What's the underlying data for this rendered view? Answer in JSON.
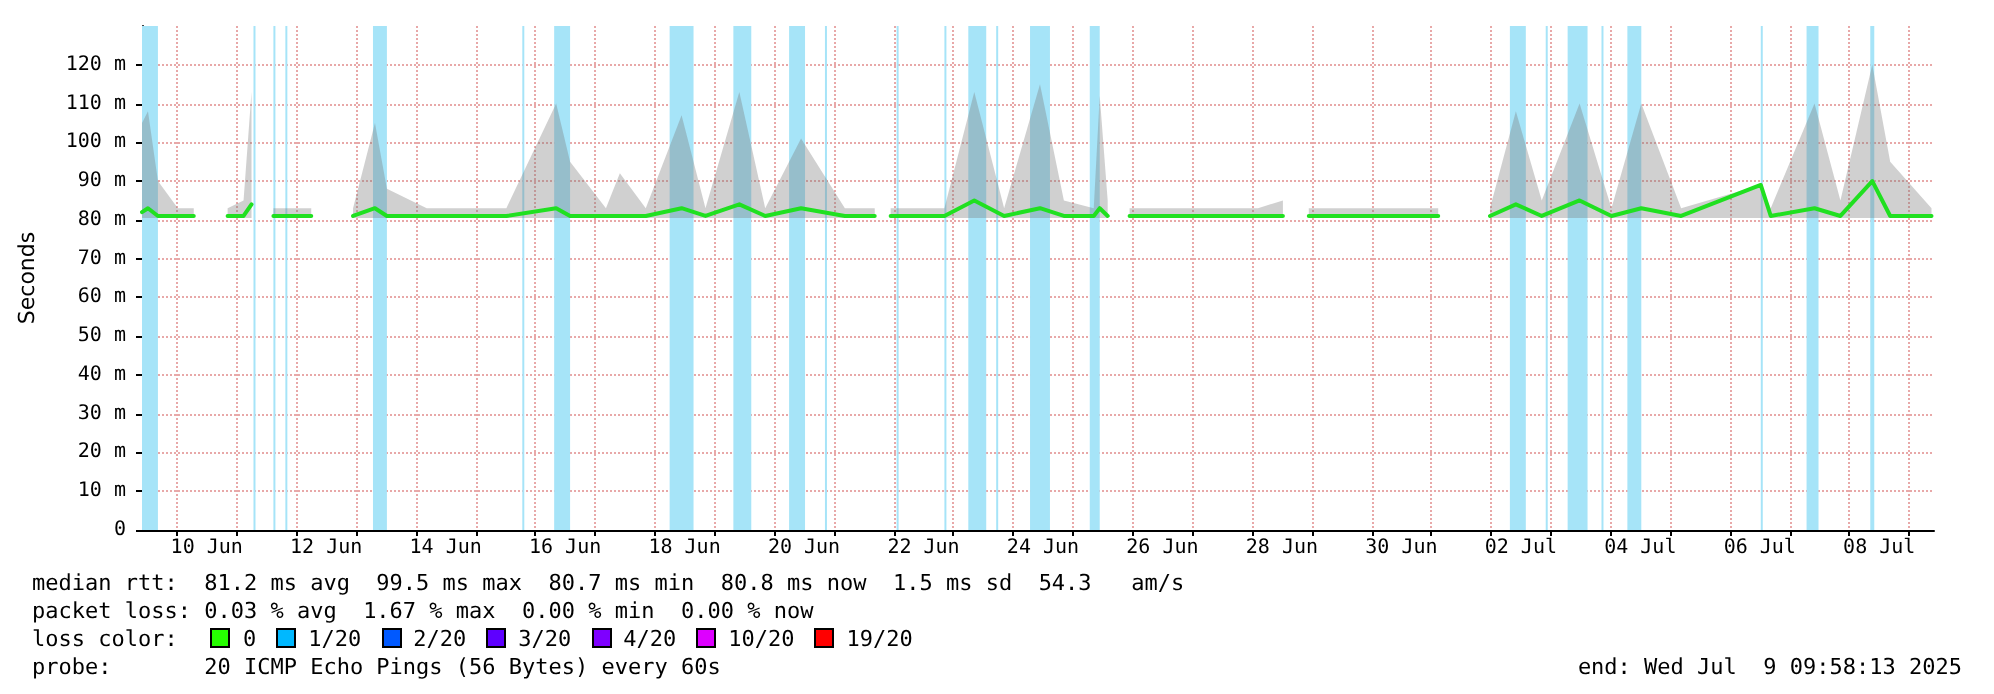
{
  "chart_data": {
    "type": "line",
    "ylabel": "Seconds",
    "annotations": [
      "median rtt:  81.2 ms avg  99.5 ms max  80.7 ms min  80.8 ms now  1.5 ms sd  54.3   am/s",
      "packet loss: 0.03 % avg  1.67 % max  0.00 % min  0.00 % now",
      "loss color:",
      "0",
      "1/20",
      "2/20",
      "3/20",
      "4/20",
      "10/20",
      "19/20",
      "probe:       20 ICMP Echo Pings (56 Bytes) every 60s",
      "end: Wed Jul  9 09:58:13 2025"
    ],
    "xlim": [
      "2025-06-09T10:00",
      "2025-07-09T10:00"
    ],
    "xticks": [
      {
        "value": "2025-06-10T00:00",
        "label": null
      },
      {
        "value": "2025-06-10T12:00",
        "label": "10 Jun"
      },
      {
        "value": "2025-06-11T00:00",
        "label": null
      },
      {
        "value": "2025-06-12T00:00",
        "label": null
      },
      {
        "value": "2025-06-12T12:00",
        "label": "12 Jun"
      },
      {
        "value": "2025-06-13T00:00",
        "label": null
      },
      {
        "value": "2025-06-14T00:00",
        "label": null
      },
      {
        "value": "2025-06-14T12:00",
        "label": "14 Jun"
      },
      {
        "value": "2025-06-15T00:00",
        "label": null
      },
      {
        "value": "2025-06-16T00:00",
        "label": null
      },
      {
        "value": "2025-06-16T12:00",
        "label": "16 Jun"
      },
      {
        "value": "2025-06-17T00:00",
        "label": null
      },
      {
        "value": "2025-06-18T00:00",
        "label": null
      },
      {
        "value": "2025-06-18T12:00",
        "label": "18 Jun"
      },
      {
        "value": "2025-06-19T00:00",
        "label": null
      },
      {
        "value": "2025-06-20T00:00",
        "label": null
      },
      {
        "value": "2025-06-20T12:00",
        "label": "20 Jun"
      },
      {
        "value": "2025-06-21T00:00",
        "label": null
      },
      {
        "value": "2025-06-22T00:00",
        "label": null
      },
      {
        "value": "2025-06-22T12:00",
        "label": "22 Jun"
      },
      {
        "value": "2025-06-23T00:00",
        "label": null
      },
      {
        "value": "2025-06-24T00:00",
        "label": null
      },
      {
        "value": "2025-06-24T12:00",
        "label": "24 Jun"
      },
      {
        "value": "2025-06-25T00:00",
        "label": null
      },
      {
        "value": "2025-06-26T00:00",
        "label": null
      },
      {
        "value": "2025-06-26T12:00",
        "label": "26 Jun"
      },
      {
        "value": "2025-06-27T00:00",
        "label": null
      },
      {
        "value": "2025-06-28T00:00",
        "label": null
      },
      {
        "value": "2025-06-28T12:00",
        "label": "28 Jun"
      },
      {
        "value": "2025-06-29T00:00",
        "label": null
      },
      {
        "value": "2025-06-30T00:00",
        "label": null
      },
      {
        "value": "2025-06-30T12:00",
        "label": "30 Jun"
      },
      {
        "value": "2025-07-01T00:00",
        "label": null
      },
      {
        "value": "2025-07-02T00:00",
        "label": null
      },
      {
        "value": "2025-07-02T12:00",
        "label": "02 Jul"
      },
      {
        "value": "2025-07-03T00:00",
        "label": null
      },
      {
        "value": "2025-07-04T00:00",
        "label": null
      },
      {
        "value": "2025-07-04T12:00",
        "label": "04 Jul"
      },
      {
        "value": "2025-07-05T00:00",
        "label": null
      },
      {
        "value": "2025-07-06T00:00",
        "label": null
      },
      {
        "value": "2025-07-06T12:00",
        "label": "06 Jul"
      },
      {
        "value": "2025-07-07T00:00",
        "label": null
      },
      {
        "value": "2025-07-08T00:00",
        "label": null
      },
      {
        "value": "2025-07-08T12:00",
        "label": "08 Jul"
      },
      {
        "value": "2025-07-09T00:00",
        "label": null
      }
    ],
    "ylim": [
      0,
      130
    ],
    "yticks": [
      0,
      {
        "value": 10,
        "label": "10 m"
      },
      {
        "value": 20,
        "label": "20 m"
      },
      {
        "value": 30,
        "label": "30 m"
      },
      {
        "value": 40,
        "label": "40 m"
      },
      {
        "value": 50,
        "label": "50 m"
      },
      {
        "value": 60,
        "label": "60 m"
      },
      {
        "value": 70,
        "label": "70 m"
      },
      {
        "value": 80,
        "label": "80 m"
      },
      {
        "value": 90,
        "label": "90 m"
      },
      {
        "value": 100,
        "label": "100 m"
      },
      {
        "value": 110,
        "label": "110 m"
      },
      {
        "value": 120,
        "label": "120 m"
      }
    ],
    "grid": true,
    "marker": "none",
    "line_style": "solid",
    "x": [
      "2025-06-09T10:00",
      "2025-06-09T12:24",
      "2025-06-09T16:24",
      "2025-06-10T00:24",
      "2025-06-10T06:48",
      "2025-06-10T08:24",
      "2025-06-10T20:24",
      "2025-06-11T02:48",
      "2025-06-11T06:00",
      "2025-06-11T08:24",
      "2025-06-11T14:48",
      "2025-06-11T22:24",
      "2025-06-12T06:00",
      "2025-06-12T08:24",
      "2025-06-12T22:48",
      "2025-06-13T07:36",
      "2025-06-13T12:24",
      "2025-06-14T04:24",
      "2025-06-15T12:24",
      "2025-06-16T08:24",
      "2025-06-16T14:00",
      "2025-06-17T04:24",
      "2025-06-17T10:00",
      "2025-06-17T20:24",
      "2025-06-18T10:48",
      "2025-06-18T20:24",
      "2025-06-19T10:00",
      "2025-06-19T20:24",
      "2025-06-20T10:48",
      "2025-06-21T04:24",
      "2025-06-21T16:24",
      "2025-06-21T18:48",
      "2025-06-21T22:48",
      "2025-06-22T20:24",
      "2025-06-23T08:24",
      "2025-06-23T20:24",
      "2025-06-24T10:48",
      "2025-06-24T20:24",
      "2025-06-25T08:24",
      "2025-06-25T10:48",
      "2025-06-25T14:00",
      "2025-06-25T16:24",
      "2025-06-25T22:48",
      "2025-06-26T02:24",
      "2025-06-26T06:00",
      "2025-06-26T08:24",
      "2025-06-26T16:24",
      "2025-06-26T22:24",
      "2025-06-27T04:24",
      "2025-06-27T08:24",
      "2025-06-27T16:24",
      "2025-06-28T02:24",
      "2025-06-28T12:24",
      "2025-06-28T16:24",
      "2025-06-28T22:48",
      "2025-06-29T09:12",
      "2025-06-29T19:36",
      "2025-06-29T22:48",
      "2025-06-30T01:36",
      "2025-06-30T04:24",
      "2025-06-30T08:24",
      "2025-06-30T14:48",
      "2025-06-30T20:48",
      "2025-07-01T02:48",
      "2025-07-01T08:24",
      "2025-07-01T23:36",
      "2025-07-02T10:00",
      "2025-07-02T20:24",
      "2025-07-03T11:36",
      "2025-07-04T00:24",
      "2025-07-04T12:24",
      "2025-07-05T04:24",
      "2025-07-06T12:24",
      "2025-07-06T16:24",
      "2025-07-07T10:00",
      "2025-07-07T20:24",
      "2025-07-08T09:12",
      "2025-07-08T16:24",
      "2025-07-09T09:00"
    ],
    "series": [
      {
        "color": "#20e020",
        "values": [
          82,
          83,
          81,
          81,
          81,
          null,
          81,
          81,
          84,
          null,
          81,
          81,
          81,
          null,
          81,
          83,
          81,
          81,
          81,
          83,
          81,
          81,
          81,
          81,
          83,
          81,
          84,
          81,
          83,
          81,
          81,
          null,
          81,
          81,
          85,
          81,
          83,
          81,
          81,
          83,
          81,
          null,
          81,
          81,
          81,
          81,
          81,
          81,
          81,
          81,
          81,
          81,
          81,
          null,
          81,
          81,
          81,
          81,
          81,
          81,
          81,
          81,
          81,
          81,
          null,
          81,
          84,
          81,
          85,
          81,
          83,
          81,
          89,
          81,
          83,
          81,
          90,
          81,
          81
        ],
        "lower": [
          80.5,
          80.5,
          80.5,
          80.5,
          80.5,
          null,
          80.5,
          80.5,
          80.5,
          null,
          80.5,
          80.5,
          80.5,
          null,
          80.5,
          80.5,
          80.5,
          80.5,
          80.5,
          80.5,
          80.5,
          80.5,
          80.5,
          80.5,
          80.5,
          80.5,
          80.5,
          80.5,
          80.5,
          80.5,
          80.5,
          null,
          80.5,
          80.5,
          80.5,
          80.5,
          80.5,
          80.5,
          80.5,
          80.5,
          80.5,
          null,
          80.5,
          80.5,
          80.5,
          80.5,
          80.5,
          80.5,
          80.5,
          80.5,
          80.5,
          80.5,
          80.5,
          null,
          80.5,
          80.5,
          80.5,
          80.5,
          80.5,
          80.5,
          80.5,
          80.5,
          80.5,
          80.5,
          null,
          80.5,
          80.5,
          80.5,
          80.5,
          80.5,
          80.5,
          80.5,
          80.5,
          80.5,
          80.5,
          80.5,
          80.5,
          80.5,
          80.5
        ],
        "upper": [
          105,
          108,
          90,
          83,
          83,
          null,
          83,
          85,
          113,
          null,
          83,
          83,
          83,
          null,
          83,
          105,
          88,
          83,
          83,
          110,
          95,
          83,
          92,
          83,
          107,
          83,
          113,
          83,
          101,
          83,
          83,
          null,
          83,
          83,
          113,
          83,
          115,
          85,
          83,
          112,
          85,
          null,
          83,
          83,
          83,
          83,
          83,
          83,
          83,
          83,
          83,
          83,
          85,
          null,
          83,
          83,
          83,
          83,
          83,
          83,
          83,
          83,
          83,
          83,
          null,
          83,
          108,
          85,
          110,
          83,
          110,
          83,
          89,
          83,
          110,
          85,
          120,
          95,
          83
        ]
      }
    ],
    "bands": [
      {
        "axis": "x",
        "from": "2025-06-09T10:00",
        "to": "2025-06-09T16:24",
        "color": "#a6e4f8"
      },
      {
        "axis": "x",
        "from": "2025-06-11T06:48",
        "to": "2025-06-11T07:36",
        "color": "#a6e4f8"
      },
      {
        "axis": "x",
        "from": "2025-06-11T14:48",
        "to": "2025-06-11T15:36",
        "color": "#a6e4f8"
      },
      {
        "axis": "x",
        "from": "2025-06-11T19:36",
        "to": "2025-06-11T20:24",
        "color": "#a6e4f8"
      },
      {
        "axis": "x",
        "from": "2025-06-13T06:48",
        "to": "2025-06-13T12:24",
        "color": "#a6e4f8"
      },
      {
        "axis": "x",
        "from": "2025-06-15T18:48",
        "to": "2025-06-15T19:36",
        "color": "#a6e4f8"
      },
      {
        "axis": "x",
        "from": "2025-06-16T07:36",
        "to": "2025-06-16T14:00",
        "color": "#a6e4f8"
      },
      {
        "axis": "x",
        "from": "2025-06-18T06:00",
        "to": "2025-06-18T15:36",
        "color": "#a6e4f8"
      },
      {
        "axis": "x",
        "from": "2025-06-19T07:36",
        "to": "2025-06-19T14:48",
        "color": "#a6e4f8"
      },
      {
        "axis": "x",
        "from": "2025-06-20T06:00",
        "to": "2025-06-20T12:24",
        "color": "#a6e4f8"
      },
      {
        "axis": "x",
        "from": "2025-06-20T20:24",
        "to": "2025-06-20T21:12",
        "color": "#a6e4f8"
      },
      {
        "axis": "x",
        "from": "2025-06-22T01:12",
        "to": "2025-06-22T02:00",
        "color": "#a6e4f8"
      },
      {
        "axis": "x",
        "from": "2025-06-22T20:24",
        "to": "2025-06-22T21:12",
        "color": "#a6e4f8"
      },
      {
        "axis": "x",
        "from": "2025-06-23T06:00",
        "to": "2025-06-23T13:12",
        "color": "#a6e4f8"
      },
      {
        "axis": "x",
        "from": "2025-06-23T17:12",
        "to": "2025-06-23T18:00",
        "color": "#a6e4f8"
      },
      {
        "axis": "x",
        "from": "2025-06-24T06:48",
        "to": "2025-06-24T14:48",
        "color": "#a6e4f8"
      },
      {
        "axis": "x",
        "from": "2025-06-25T06:48",
        "to": "2025-06-25T10:48",
        "color": "#a6e4f8"
      },
      {
        "axis": "x",
        "from": "2025-07-02T07:36",
        "to": "2025-07-02T14:00",
        "color": "#a6e4f8"
      },
      {
        "axis": "x",
        "from": "2025-07-02T22:00",
        "to": "2025-07-02T22:48",
        "color": "#a6e4f8"
      },
      {
        "axis": "x",
        "from": "2025-07-03T06:48",
        "to": "2025-07-03T14:48",
        "color": "#a6e4f8"
      },
      {
        "axis": "x",
        "from": "2025-07-03T20:24",
        "to": "2025-07-03T21:12",
        "color": "#a6e4f8"
      },
      {
        "axis": "x",
        "from": "2025-07-04T06:48",
        "to": "2025-07-04T12:24",
        "color": "#a6e4f8"
      },
      {
        "axis": "x",
        "from": "2025-07-06T12:24",
        "to": "2025-07-06T13:12",
        "color": "#a6e4f8"
      },
      {
        "axis": "x",
        "from": "2025-07-07T06:48",
        "to": "2025-07-07T11:36",
        "color": "#a6e4f8"
      },
      {
        "axis": "x",
        "from": "2025-07-08T08:24",
        "to": "2025-07-08T10:00",
        "color": "#a6e4f8"
      }
    ]
  }
}
